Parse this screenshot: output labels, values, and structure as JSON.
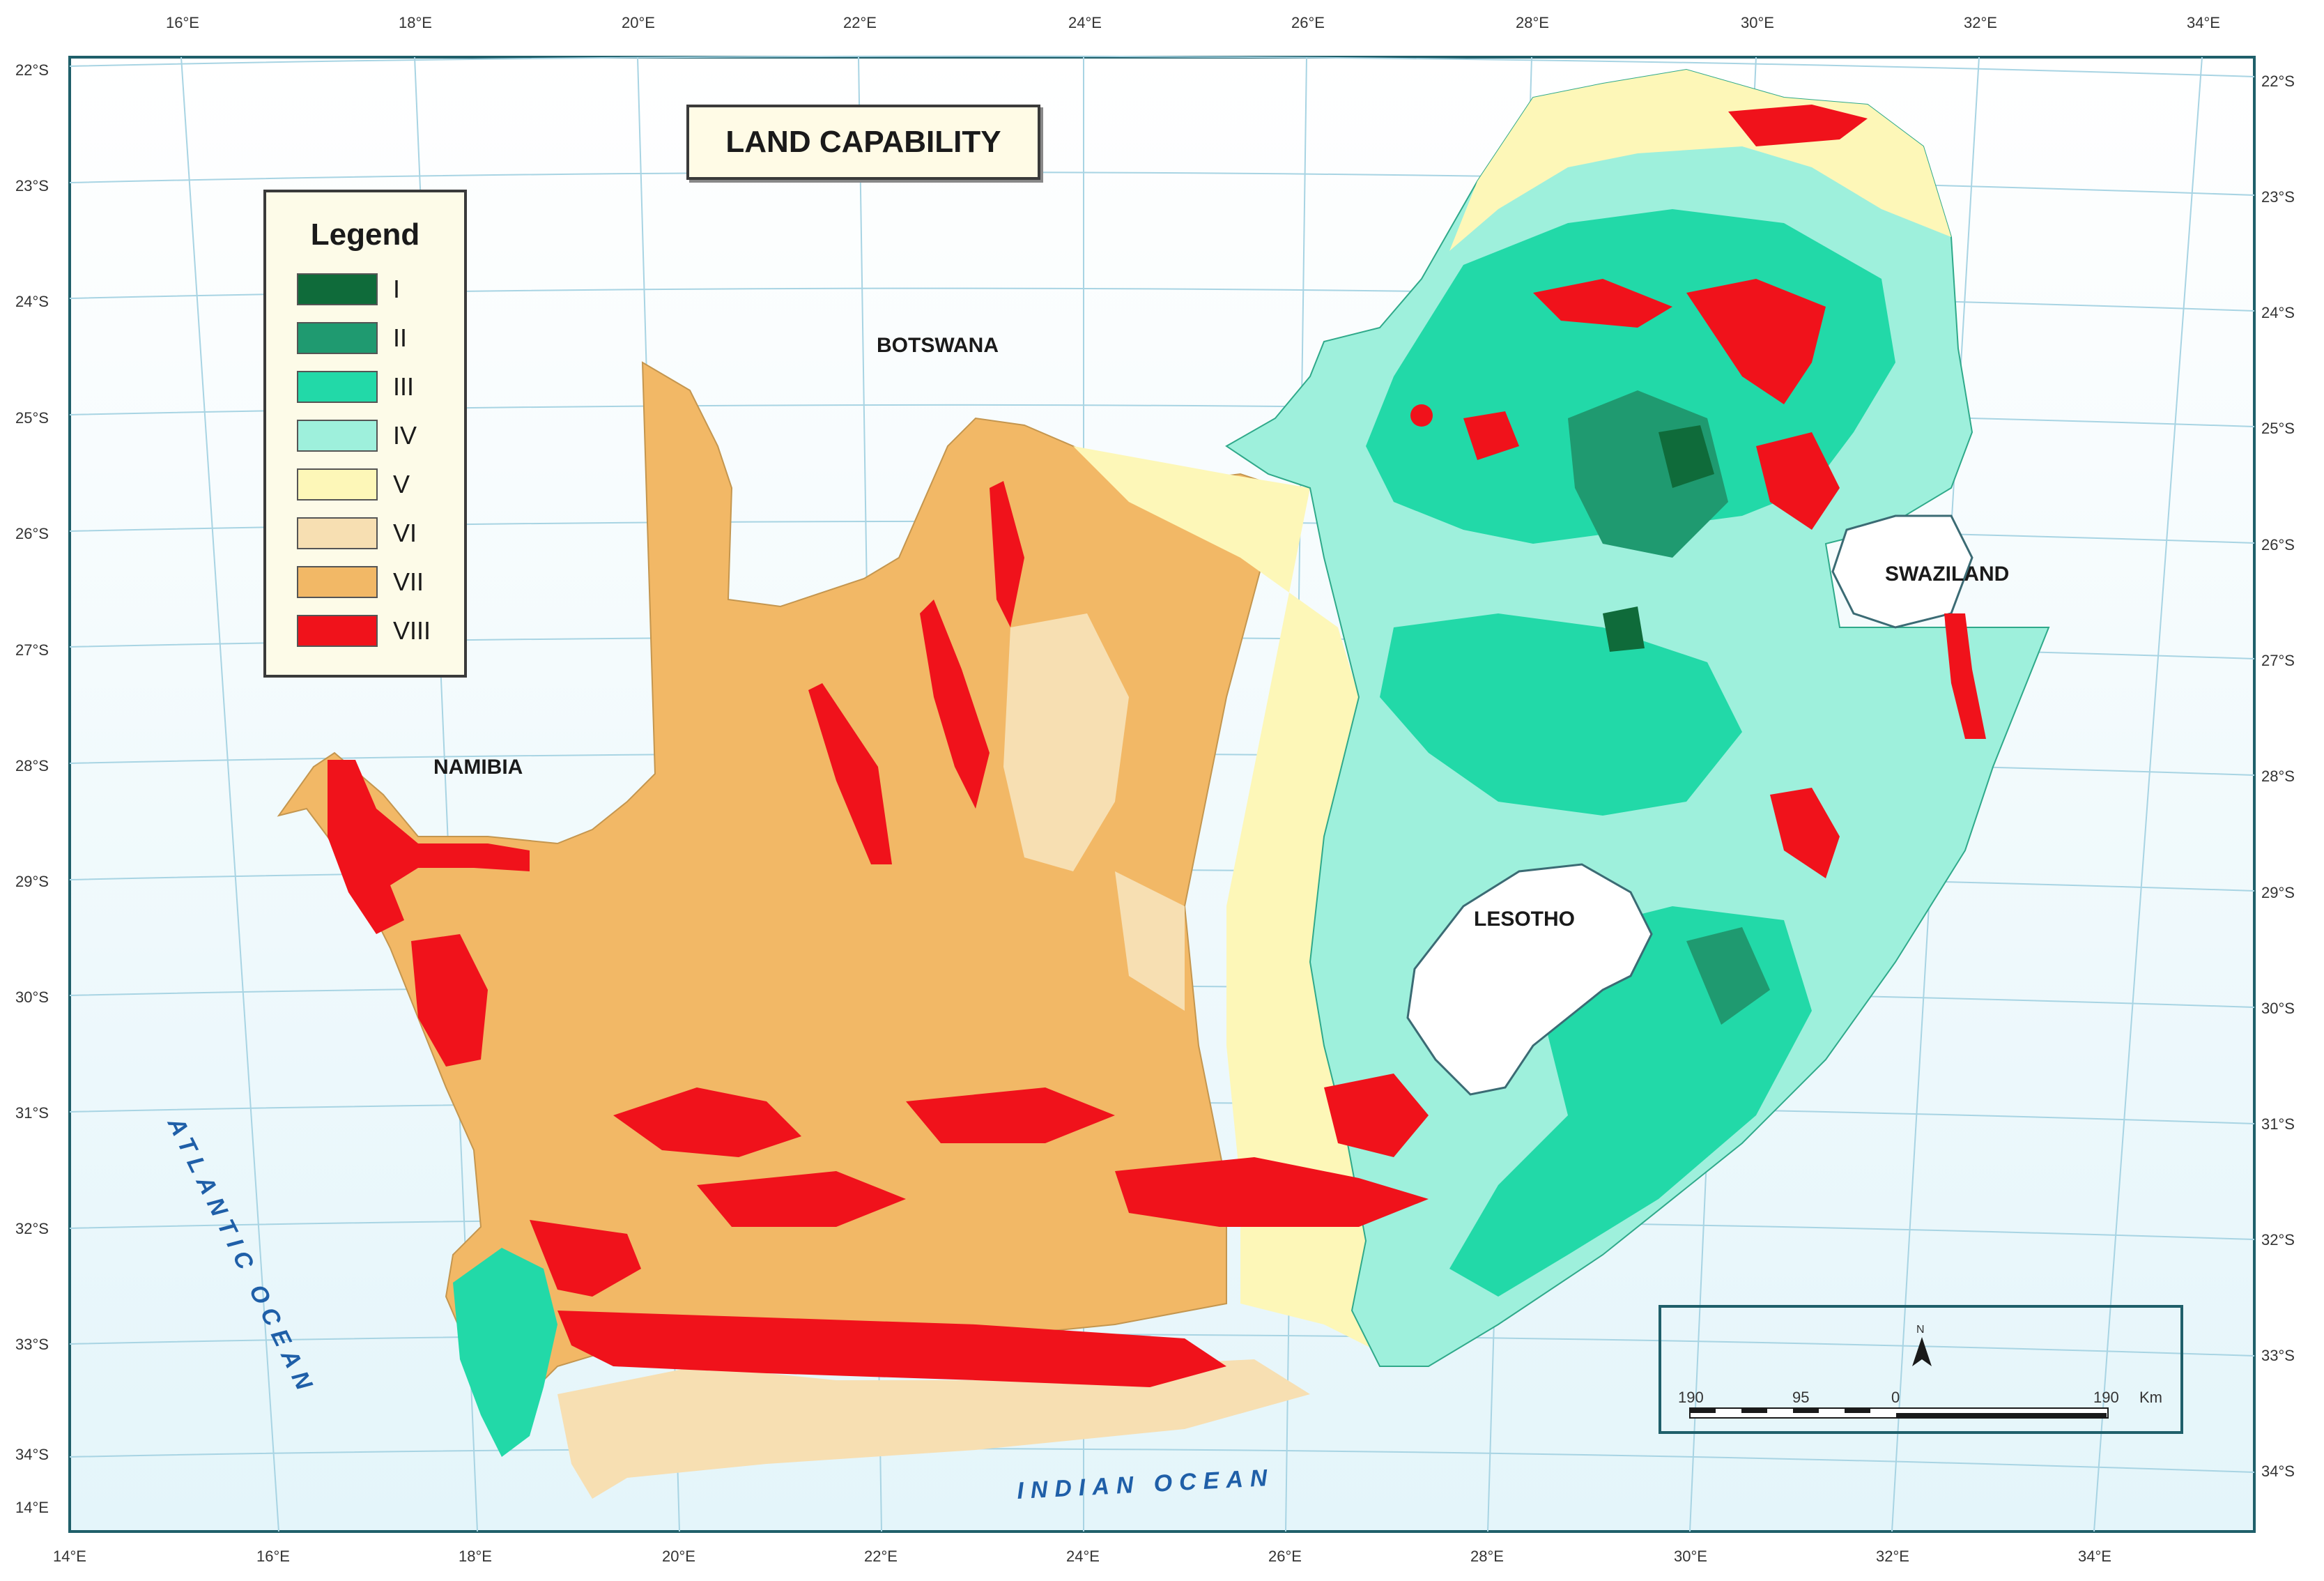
{
  "map": {
    "title": "LAND CAPABILITY",
    "top_lon_labels": [
      "16°E",
      "18°E",
      "20°E",
      "22°E",
      "24°E",
      "26°E",
      "28°E",
      "30°E",
      "32°E",
      "34°E"
    ],
    "bottom_lon_labels": [
      "14°E",
      "16°E",
      "18°E",
      "20°E",
      "22°E",
      "24°E",
      "26°E",
      "28°E",
      "30°E",
      "32°E",
      "34°E"
    ],
    "left_lat_labels": [
      "22°S",
      "23°S",
      "24°S",
      "25°S",
      "26°S",
      "27°S",
      "28°S",
      "29°S",
      "30°S",
      "31°S",
      "32°S",
      "33°S",
      "34°S",
      "14°E"
    ],
    "right_lat_labels": [
      "22°S",
      "23°S",
      "24°S",
      "25°S",
      "26°S",
      "27°S",
      "28°S",
      "29°S",
      "30°S",
      "31°S",
      "32°S",
      "33°S",
      "34°S"
    ],
    "countries": {
      "botswana": "BOTSWANA",
      "namibia": "NAMIBIA",
      "swaziland": "SWAZILAND",
      "lesotho": "LESOTHO"
    },
    "oceans": {
      "atlantic": "ATLANTIC OCEAN",
      "indian": "INDIAN OCEAN"
    }
  },
  "legend": {
    "title": "Legend",
    "classes": [
      {
        "label": "I",
        "color": "#0f6b3a"
      },
      {
        "label": "II",
        "color": "#1f9a70"
      },
      {
        "label": "III",
        "color": "#22d9a8"
      },
      {
        "label": "IV",
        "color": "#9ef0dc"
      },
      {
        "label": "V",
        "color": "#fdf7b8"
      },
      {
        "label": "VI",
        "color": "#f7dfb2"
      },
      {
        "label": "VII",
        "color": "#f2b866"
      },
      {
        "label": "VIII",
        "color": "#f0121b"
      }
    ]
  },
  "scalebar": {
    "north": "N",
    "ticks": [
      "190",
      "95",
      "0",
      "190"
    ],
    "unit": "Km"
  },
  "colors": {
    "ocean": "#e8f7fb",
    "frame": "#1f5f6a",
    "graticule": "#9fd0e0"
  }
}
